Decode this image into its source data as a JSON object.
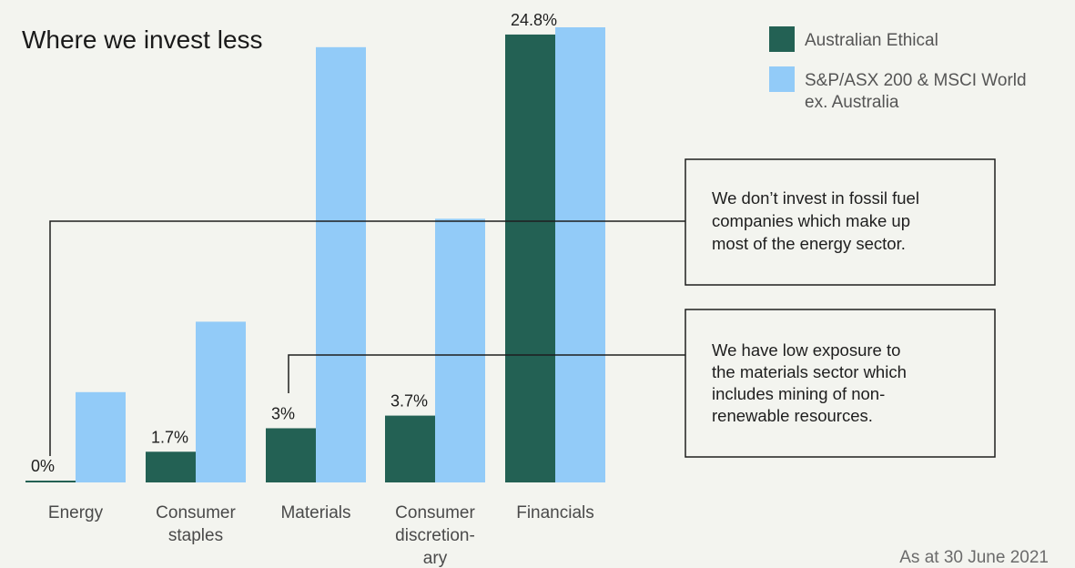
{
  "chart_data": {
    "type": "bar",
    "title": "Where we invest less",
    "categories": [
      [
        "Energy"
      ],
      [
        "Consumer",
        "staples"
      ],
      [
        "Materials"
      ],
      [
        "Consumer",
        "discretion-",
        "ary"
      ],
      [
        "Financials"
      ]
    ],
    "series": [
      {
        "name": "Australian Ethical",
        "color": "#236154",
        "values": [
          0,
          1.7,
          3,
          3.7,
          24.8
        ],
        "labels": [
          "0%",
          "1.7%",
          "3%",
          "3.7%",
          "24.8%"
        ]
      },
      {
        "name": "S&P/ASX 200 & MSCI World ex. Australia",
        "legend_lines": [
          "S&P/ASX 200 & MSCI World",
          "ex. Australia"
        ],
        "color": "#92cbf8",
        "values": [
          5.0,
          8.9,
          24.1,
          14.6,
          25.2
        ]
      }
    ],
    "ylim": [
      0,
      25.2
    ],
    "grid": false,
    "legend": "top-right",
    "annotations": [
      {
        "lines": [
          "We don’t invest in fossil fuel",
          "companies which make up",
          "most of the energy sector."
        ],
        "target_category": 0
      },
      {
        "lines": [
          "We have low exposure to",
          "the materials sector which",
          "includes mining of non-",
          "renewable resources."
        ],
        "target_category": 2
      }
    ],
    "footer": "As at 30 June 2021"
  }
}
